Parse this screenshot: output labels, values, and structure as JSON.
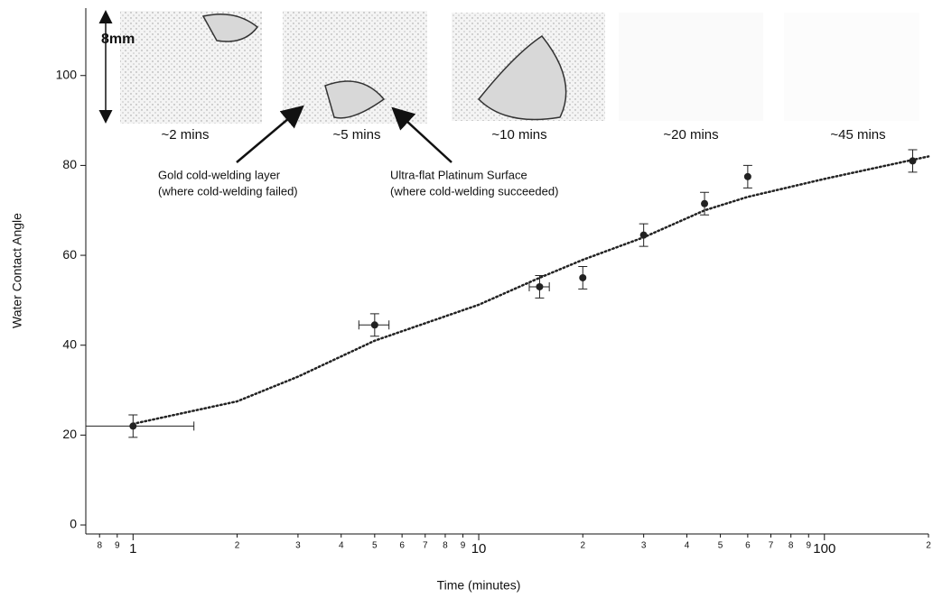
{
  "chart_data": {
    "type": "scatter",
    "x_label": "Time (minutes)",
    "y_label": "Water Contact Angle",
    "log_x": true,
    "xlim": [
      0.73,
      200
    ],
    "ylim": [
      -2,
      115
    ],
    "xticks": [
      {
        "value": 0.8,
        "label": "8"
      },
      {
        "value": 0.9,
        "label": "9"
      },
      1,
      {
        "value": 2,
        "label": "2"
      },
      {
        "value": 3,
        "label": "3"
      },
      {
        "value": 4,
        "label": "4"
      },
      {
        "value": 5,
        "label": "5"
      },
      {
        "value": 6,
        "label": "6"
      },
      {
        "value": 7,
        "label": "7"
      },
      {
        "value": 8,
        "label": "8"
      },
      {
        "value": 9,
        "label": "9"
      },
      10,
      {
        "value": 20,
        "label": "2"
      },
      {
        "value": 30,
        "label": "3"
      },
      {
        "value": 40,
        "label": "4"
      },
      {
        "value": 50,
        "label": "5"
      },
      {
        "value": 60,
        "label": "6"
      },
      {
        "value": 70,
        "label": "7"
      },
      {
        "value": 80,
        "label": "8"
      },
      {
        "value": 90,
        "label": "9"
      },
      100,
      {
        "value": 200,
        "label": "2"
      }
    ],
    "yticks": [
      0,
      20,
      40,
      60,
      80,
      100
    ],
    "points": {
      "color": "#222222",
      "x": [
        1,
        5,
        15,
        20,
        30,
        45,
        60,
        180
      ],
      "values": [
        22,
        44.5,
        53,
        55,
        64.5,
        71.5,
        77.5,
        81
      ],
      "yerr": [
        2.5,
        2.5,
        2.5,
        2.5,
        2.5,
        2.5,
        2.5,
        2.5
      ],
      "xerr": [
        [
          0.27,
          0.5
        ],
        [
          0.5,
          0.5
        ],
        [
          1,
          1
        ],
        null,
        null,
        null,
        null,
        null
      ]
    },
    "fit": {
      "color": "#222222",
      "style": "dotted",
      "x": [
        1,
        2,
        3,
        5,
        10,
        15,
        20,
        30,
        45,
        60,
        100,
        200
      ],
      "values": [
        22.5,
        27.5,
        33,
        41,
        49,
        55,
        59,
        64,
        70,
        73,
        77,
        82
      ]
    },
    "scale_label": "8mm",
    "image_labels": [
      "~2 mins",
      "~5 mins",
      "~10 mins",
      "~20 mins",
      "~45 mins"
    ],
    "annotations": [
      "Gold cold-welding layer",
      "(where cold-welding failed)",
      "Ultra-flat Platinum Surface",
      "(where cold-welding succeeded)"
    ]
  }
}
